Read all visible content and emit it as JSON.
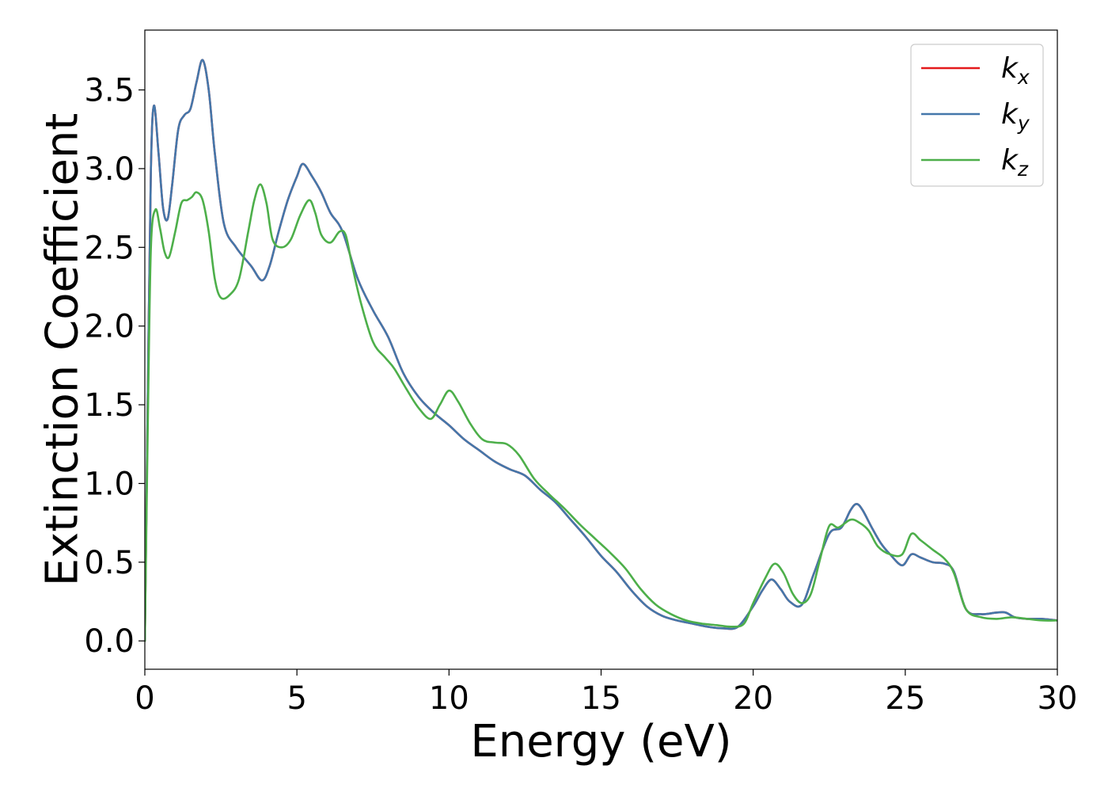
{
  "chart_data": {
    "type": "line",
    "title": "",
    "xlabel": "Energy (eV)",
    "ylabel": "Extinction Coefficient",
    "xlim": [
      0,
      30
    ],
    "ylim": [
      -0.18,
      3.88
    ],
    "xticks": [
      0,
      5,
      10,
      15,
      20,
      25,
      30
    ],
    "xtick_labels": [
      "0",
      "5",
      "10",
      "15",
      "20",
      "25",
      "30"
    ],
    "yticks": [
      0.0,
      0.5,
      1.0,
      1.5,
      2.0,
      2.5,
      3.0,
      3.5
    ],
    "ytick_labels": [
      "0.0",
      "0.5",
      "1.0",
      "1.5",
      "2.0",
      "2.5",
      "3.0",
      "3.5"
    ],
    "grid": false,
    "legend_position": "top-right",
    "series": [
      {
        "name": "k_x",
        "legend_base": "k",
        "legend_sub": "x",
        "color": "#e41a1c",
        "x": [
          0,
          0.1,
          0.2,
          0.3,
          0.45,
          0.6,
          0.75,
          0.9,
          1.1,
          1.3,
          1.5,
          1.7,
          1.9,
          2.1,
          2.3,
          2.6,
          3.0,
          3.5,
          3.85,
          4.1,
          4.4,
          4.7,
          5.0,
          5.2,
          5.5,
          5.8,
          6.1,
          6.5,
          7.0,
          7.5,
          8.0,
          8.5,
          9.0,
          9.5,
          10.0,
          10.5,
          11.0,
          11.5,
          12.0,
          12.5,
          13.0,
          13.5,
          14.0,
          14.5,
          15.0,
          15.5,
          16.0,
          16.5,
          17.0,
          17.5,
          18.0,
          18.5,
          19.0,
          19.5,
          20.0,
          20.3,
          20.6,
          20.9,
          21.2,
          21.6,
          22.0,
          22.5,
          22.9,
          23.2,
          23.4,
          23.6,
          23.9,
          24.2,
          24.5,
          24.9,
          25.2,
          25.5,
          25.9,
          26.3,
          26.6,
          27.0,
          27.5,
          28.0,
          28.3,
          28.6,
          29.0,
          29.5,
          30.0
        ],
        "y": [
          0.0,
          1.6,
          3.0,
          3.4,
          3.1,
          2.75,
          2.68,
          2.9,
          3.25,
          3.34,
          3.38,
          3.55,
          3.69,
          3.5,
          3.1,
          2.65,
          2.5,
          2.38,
          2.29,
          2.38,
          2.6,
          2.8,
          2.95,
          3.03,
          2.95,
          2.85,
          2.72,
          2.6,
          2.3,
          2.1,
          1.93,
          1.7,
          1.55,
          1.45,
          1.37,
          1.28,
          1.21,
          1.14,
          1.09,
          1.05,
          0.96,
          0.88,
          0.77,
          0.66,
          0.54,
          0.44,
          0.32,
          0.22,
          0.16,
          0.13,
          0.11,
          0.09,
          0.08,
          0.09,
          0.22,
          0.32,
          0.39,
          0.33,
          0.25,
          0.23,
          0.43,
          0.68,
          0.72,
          0.83,
          0.87,
          0.83,
          0.72,
          0.62,
          0.55,
          0.48,
          0.55,
          0.53,
          0.5,
          0.49,
          0.44,
          0.2,
          0.17,
          0.18,
          0.18,
          0.15,
          0.14,
          0.14,
          0.13
        ]
      },
      {
        "name": "k_y",
        "legend_base": "k",
        "legend_sub": "y",
        "color": "#4477aa",
        "x": [
          0,
          0.1,
          0.2,
          0.3,
          0.45,
          0.6,
          0.75,
          0.9,
          1.1,
          1.3,
          1.5,
          1.7,
          1.9,
          2.1,
          2.3,
          2.6,
          3.0,
          3.5,
          3.85,
          4.1,
          4.4,
          4.7,
          5.0,
          5.2,
          5.5,
          5.8,
          6.1,
          6.5,
          7.0,
          7.5,
          8.0,
          8.5,
          9.0,
          9.5,
          10.0,
          10.5,
          11.0,
          11.5,
          12.0,
          12.5,
          13.0,
          13.5,
          14.0,
          14.5,
          15.0,
          15.5,
          16.0,
          16.5,
          17.0,
          17.5,
          18.0,
          18.5,
          19.0,
          19.5,
          20.0,
          20.3,
          20.6,
          20.9,
          21.2,
          21.6,
          22.0,
          22.5,
          22.9,
          23.2,
          23.4,
          23.6,
          23.9,
          24.2,
          24.5,
          24.9,
          25.2,
          25.5,
          25.9,
          26.3,
          26.6,
          27.0,
          27.5,
          28.0,
          28.3,
          28.6,
          29.0,
          29.5,
          30.0
        ],
        "y": [
          0.0,
          1.6,
          3.0,
          3.4,
          3.1,
          2.75,
          2.68,
          2.9,
          3.25,
          3.34,
          3.38,
          3.55,
          3.69,
          3.5,
          3.1,
          2.65,
          2.5,
          2.38,
          2.29,
          2.38,
          2.6,
          2.8,
          2.95,
          3.03,
          2.95,
          2.85,
          2.72,
          2.6,
          2.3,
          2.1,
          1.93,
          1.7,
          1.55,
          1.45,
          1.37,
          1.28,
          1.21,
          1.14,
          1.09,
          1.05,
          0.96,
          0.88,
          0.77,
          0.66,
          0.54,
          0.44,
          0.32,
          0.22,
          0.16,
          0.13,
          0.11,
          0.09,
          0.08,
          0.09,
          0.22,
          0.32,
          0.39,
          0.33,
          0.25,
          0.23,
          0.43,
          0.68,
          0.72,
          0.83,
          0.87,
          0.83,
          0.72,
          0.62,
          0.55,
          0.48,
          0.55,
          0.53,
          0.5,
          0.49,
          0.44,
          0.2,
          0.17,
          0.18,
          0.18,
          0.15,
          0.14,
          0.14,
          0.13
        ]
      },
      {
        "name": "k_z",
        "legend_base": "k",
        "legend_sub": "z",
        "color": "#4daf4a",
        "x": [
          0,
          0.1,
          0.2,
          0.35,
          0.5,
          0.65,
          0.8,
          1.0,
          1.2,
          1.4,
          1.55,
          1.7,
          1.9,
          2.1,
          2.3,
          2.5,
          2.8,
          3.1,
          3.4,
          3.6,
          3.8,
          4.0,
          4.2,
          4.5,
          4.8,
          5.1,
          5.4,
          5.6,
          5.8,
          6.1,
          6.4,
          6.6,
          6.8,
          7.1,
          7.5,
          7.9,
          8.2,
          8.6,
          9.0,
          9.4,
          9.7,
          10.0,
          10.3,
          10.7,
          11.1,
          11.5,
          11.9,
          12.3,
          12.8,
          13.3,
          13.8,
          14.3,
          14.8,
          15.3,
          15.8,
          16.3,
          16.8,
          17.3,
          17.8,
          18.3,
          18.8,
          19.3,
          19.7,
          20.0,
          20.4,
          20.7,
          21.0,
          21.3,
          21.6,
          21.9,
          22.2,
          22.5,
          22.8,
          23.2,
          23.5,
          23.8,
          24.1,
          24.5,
          24.9,
          25.2,
          25.5,
          25.9,
          26.3,
          26.6,
          27.0,
          27.5,
          28.0,
          28.5,
          29.0,
          29.5,
          30.0
        ],
        "y": [
          0.0,
          1.4,
          2.5,
          2.74,
          2.62,
          2.47,
          2.44,
          2.6,
          2.78,
          2.8,
          2.82,
          2.85,
          2.8,
          2.6,
          2.3,
          2.18,
          2.2,
          2.3,
          2.6,
          2.8,
          2.9,
          2.78,
          2.55,
          2.5,
          2.55,
          2.7,
          2.8,
          2.72,
          2.58,
          2.53,
          2.6,
          2.58,
          2.4,
          2.15,
          1.9,
          1.8,
          1.73,
          1.6,
          1.48,
          1.41,
          1.5,
          1.59,
          1.52,
          1.38,
          1.28,
          1.26,
          1.25,
          1.18,
          1.03,
          0.93,
          0.84,
          0.74,
          0.65,
          0.56,
          0.46,
          0.33,
          0.23,
          0.17,
          0.13,
          0.11,
          0.1,
          0.09,
          0.11,
          0.24,
          0.4,
          0.49,
          0.43,
          0.3,
          0.24,
          0.3,
          0.52,
          0.73,
          0.72,
          0.77,
          0.75,
          0.7,
          0.6,
          0.55,
          0.55,
          0.68,
          0.64,
          0.58,
          0.52,
          0.43,
          0.2,
          0.15,
          0.14,
          0.15,
          0.14,
          0.13,
          0.13
        ]
      }
    ]
  }
}
